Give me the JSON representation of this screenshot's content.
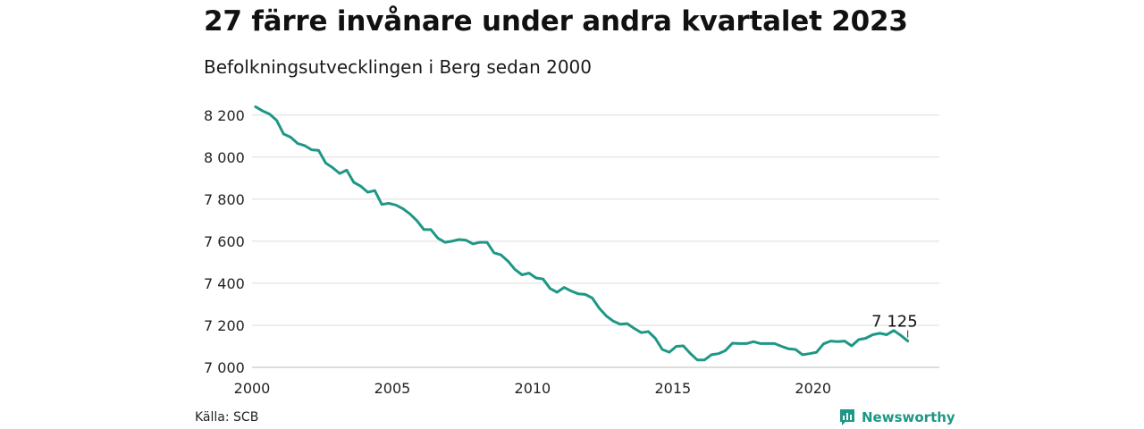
{
  "header": {
    "title": "27 färre invånare under andra kvartalet 2023",
    "subtitle": "Befolkningsutvecklingen i Berg sedan 2000"
  },
  "footer": {
    "source": "Källa: SCB",
    "brand": "Newsworthy"
  },
  "colors": {
    "line": "#1e9786",
    "grid": "#dddddd",
    "brand": "#1e9786"
  },
  "chart_data": {
    "type": "line",
    "title": "",
    "xlabel": "",
    "ylabel": "",
    "x_ticks": [
      2000,
      2005,
      2010,
      2015,
      2020
    ],
    "x_tick_labels": [
      "2000",
      "2005",
      "2010",
      "2015",
      "2020"
    ],
    "y_ticks": [
      7000,
      7200,
      7400,
      7600,
      7800,
      8000,
      8200
    ],
    "y_tick_labels": [
      "7 000",
      "7 200",
      "7 400",
      "7 600",
      "7 800",
      "8 000",
      "8 200"
    ],
    "xlim": [
      2000,
      2024.5
    ],
    "ylim": [
      7000,
      8250
    ],
    "grid": true,
    "annotation": {
      "text": "7 125",
      "x": 2023.375,
      "y": 7125
    },
    "series": [
      {
        "x": [
          2000.125,
          2000.375,
          2000.625,
          2000.875,
          2001.125,
          2001.375,
          2001.625,
          2001.875,
          2002.125,
          2002.375,
          2002.625,
          2002.875,
          2003.125,
          2003.375,
          2003.625,
          2003.875,
          2004.125,
          2004.375,
          2004.625,
          2004.875,
          2005.125,
          2005.375,
          2005.625,
          2005.875,
          2006.125,
          2006.375,
          2006.625,
          2006.875,
          2007.125,
          2007.375,
          2007.625,
          2007.875,
          2008.125,
          2008.375,
          2008.625,
          2008.875,
          2009.125,
          2009.375,
          2009.625,
          2009.875,
          2010.125,
          2010.375,
          2010.625,
          2010.875,
          2011.125,
          2011.375,
          2011.625,
          2011.875,
          2012.125,
          2012.375,
          2012.625,
          2012.875,
          2013.125,
          2013.375,
          2013.625,
          2013.875,
          2014.125,
          2014.375,
          2014.625,
          2014.875,
          2015.125,
          2015.375,
          2015.625,
          2015.875,
          2016.125,
          2016.375,
          2016.625,
          2016.875,
          2017.125,
          2017.375,
          2017.625,
          2017.875,
          2018.125,
          2018.375,
          2018.625,
          2018.875,
          2019.125,
          2019.375,
          2019.625,
          2019.875,
          2020.125,
          2020.375,
          2020.625,
          2020.875,
          2021.125,
          2021.375,
          2021.625,
          2021.875,
          2022.125,
          2022.375,
          2022.625,
          2022.875,
          2023.125,
          2023.375
        ],
        "values": [
          8240,
          8220,
          8205,
          8175,
          8110,
          8095,
          8065,
          8055,
          8035,
          8032,
          7972,
          7950,
          7922,
          7938,
          7880,
          7862,
          7833,
          7841,
          7775,
          7780,
          7772,
          7755,
          7730,
          7698,
          7655,
          7655,
          7615,
          7595,
          7600,
          7608,
          7605,
          7587,
          7595,
          7595,
          7545,
          7535,
          7505,
          7465,
          7440,
          7448,
          7425,
          7420,
          7375,
          7357,
          7380,
          7363,
          7350,
          7347,
          7330,
          7282,
          7245,
          7220,
          7205,
          7208,
          7185,
          7165,
          7170,
          7138,
          7085,
          7072,
          7100,
          7102,
          7066,
          7035,
          7035,
          7060,
          7065,
          7080,
          7115,
          7113,
          7113,
          7122,
          7113,
          7113,
          7113,
          7100,
          7088,
          7085,
          7060,
          7065,
          7072,
          7112,
          7125,
          7122,
          7125,
          7102,
          7132,
          7138,
          7155,
          7162,
          7155,
          7175,
          7152,
          7125
        ]
      }
    ]
  }
}
